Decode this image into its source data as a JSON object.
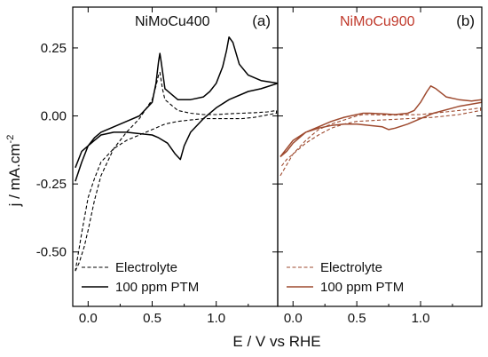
{
  "figure": {
    "ylabel": "j / mA.cm",
    "ylabel_sup": "-2",
    "xlabel": "E / V vs RHE"
  },
  "chart_data": [
    {
      "type": "line",
      "panel": "(a)",
      "title": "NiMoCu400",
      "title_color": "#111111",
      "series_color": "#000000",
      "xlim": [
        -0.12,
        1.48
      ],
      "ylim": [
        -0.7,
        0.4
      ],
      "xticks": [
        0.0,
        0.5,
        1.0
      ],
      "xtick_labels": [
        "0.0",
        "0.5",
        "1.0"
      ],
      "yticks": [
        0.25,
        0.0,
        -0.25,
        -0.5
      ],
      "ytick_labels": [
        "0.25",
        "0.00",
        "-0.25",
        "-0.50"
      ],
      "legend_position": "bottom-left",
      "series": [
        {
          "name": "Electrolyte",
          "style": "dashed",
          "x": [
            -0.1,
            -0.07,
            -0.03,
            0.0,
            0.05,
            0.1,
            0.2,
            0.3,
            0.4,
            0.5,
            0.53,
            0.55,
            0.56,
            0.58,
            0.6,
            0.7,
            0.8,
            0.9,
            1.0,
            1.1,
            1.2,
            1.3,
            1.4,
            1.47,
            1.47,
            1.3,
            1.2,
            1.1,
            1.0,
            0.9,
            0.8,
            0.7,
            0.6,
            0.55,
            0.5,
            0.4,
            0.3,
            0.2,
            0.1,
            0.05,
            0.0,
            -0.05,
            -0.1
          ],
          "y": [
            -0.57,
            -0.54,
            -0.48,
            -0.42,
            -0.31,
            -0.22,
            -0.12,
            -0.06,
            -0.01,
            0.06,
            0.11,
            0.15,
            0.16,
            0.1,
            0.06,
            0.02,
            0.01,
            0.005,
            0.005,
            0.008,
            0.01,
            0.012,
            0.015,
            0.02,
            0.01,
            -0.005,
            -0.01,
            -0.01,
            -0.01,
            -0.01,
            -0.015,
            -0.02,
            -0.03,
            -0.04,
            -0.05,
            -0.07,
            -0.09,
            -0.12,
            -0.17,
            -0.23,
            -0.3,
            -0.43,
            -0.57
          ]
        },
        {
          "name": "100 ppm PTM",
          "style": "solid",
          "x": [
            -0.1,
            -0.05,
            0.0,
            0.05,
            0.1,
            0.2,
            0.3,
            0.4,
            0.5,
            0.53,
            0.55,
            0.56,
            0.57,
            0.6,
            0.7,
            0.8,
            0.9,
            0.95,
            1.0,
            1.05,
            1.08,
            1.1,
            1.13,
            1.18,
            1.25,
            1.35,
            1.48,
            1.48,
            1.35,
            1.25,
            1.1,
            1.0,
            0.9,
            0.8,
            0.75,
            0.72,
            0.68,
            0.62,
            0.55,
            0.5,
            0.4,
            0.3,
            0.2,
            0.1,
            0.05,
            0.0,
            -0.05,
            -0.1
          ],
          "y": [
            -0.24,
            -0.17,
            -0.11,
            -0.08,
            -0.06,
            -0.04,
            -0.02,
            0.0,
            0.05,
            0.12,
            0.2,
            0.23,
            0.2,
            0.1,
            0.06,
            0.06,
            0.07,
            0.09,
            0.12,
            0.18,
            0.24,
            0.29,
            0.27,
            0.19,
            0.15,
            0.13,
            0.12,
            0.12,
            0.1,
            0.09,
            0.06,
            0.03,
            -0.01,
            -0.06,
            -0.11,
            -0.16,
            -0.14,
            -0.1,
            -0.08,
            -0.07,
            -0.065,
            -0.06,
            -0.06,
            -0.07,
            -0.09,
            -0.11,
            -0.13,
            -0.19
          ]
        }
      ]
    },
    {
      "type": "line",
      "panel": "(b)",
      "title": "NiMoCu900",
      "title_color": "#c0392b",
      "series_color": "#9e4a2f",
      "xlim": [
        -0.12,
        1.48
      ],
      "ylim": [
        -0.7,
        0.4
      ],
      "xticks": [
        0.0,
        0.5,
        1.0
      ],
      "xtick_labels": [
        "0.0",
        "0.5",
        "1.0"
      ],
      "yticks": [
        0.25,
        0.0,
        -0.25,
        -0.5
      ],
      "ytick_labels": [
        "0.25",
        "0.00",
        "-0.25",
        "-0.50"
      ],
      "legend_position": "bottom-left",
      "series": [
        {
          "name": "Electrolyte",
          "style": "dashed",
          "x": [
            -0.1,
            -0.05,
            0.0,
            0.1,
            0.2,
            0.3,
            0.4,
            0.5,
            0.55,
            0.6,
            0.7,
            0.8,
            0.9,
            1.0,
            1.1,
            1.2,
            1.3,
            1.4,
            1.47,
            1.47,
            1.3,
            1.1,
            0.9,
            0.7,
            0.5,
            0.4,
            0.3,
            0.2,
            0.1,
            0.0,
            -0.05,
            -0.1
          ],
          "y": [
            -0.22,
            -0.18,
            -0.14,
            -0.09,
            -0.05,
            -0.03,
            -0.015,
            0.0,
            0.005,
            0.005,
            0.003,
            0.003,
            0.004,
            0.005,
            0.01,
            0.015,
            0.02,
            0.025,
            0.03,
            0.02,
            0.005,
            -0.005,
            -0.01,
            -0.015,
            -0.02,
            -0.03,
            -0.045,
            -0.07,
            -0.1,
            -0.14,
            -0.16,
            -0.19
          ]
        },
        {
          "name": "100 ppm PTM",
          "style": "solid",
          "x": [
            -0.1,
            -0.05,
            0.0,
            0.1,
            0.2,
            0.3,
            0.4,
            0.5,
            0.55,
            0.6,
            0.7,
            0.8,
            0.9,
            0.95,
            1.0,
            1.05,
            1.08,
            1.12,
            1.2,
            1.3,
            1.4,
            1.48,
            1.48,
            1.3,
            1.1,
            1.0,
            0.9,
            0.8,
            0.75,
            0.7,
            0.6,
            0.5,
            0.4,
            0.3,
            0.2,
            0.1,
            0.0,
            -0.05,
            -0.1
          ],
          "y": [
            -0.15,
            -0.13,
            -0.1,
            -0.06,
            -0.04,
            -0.02,
            -0.005,
            0.005,
            0.01,
            0.01,
            0.008,
            0.005,
            0.01,
            0.02,
            0.05,
            0.09,
            0.11,
            0.1,
            0.07,
            0.06,
            0.055,
            0.06,
            0.05,
            0.035,
            0.01,
            -0.01,
            -0.03,
            -0.045,
            -0.05,
            -0.04,
            -0.035,
            -0.03,
            -0.03,
            -0.035,
            -0.045,
            -0.06,
            -0.09,
            -0.12,
            -0.15
          ]
        }
      ]
    }
  ]
}
